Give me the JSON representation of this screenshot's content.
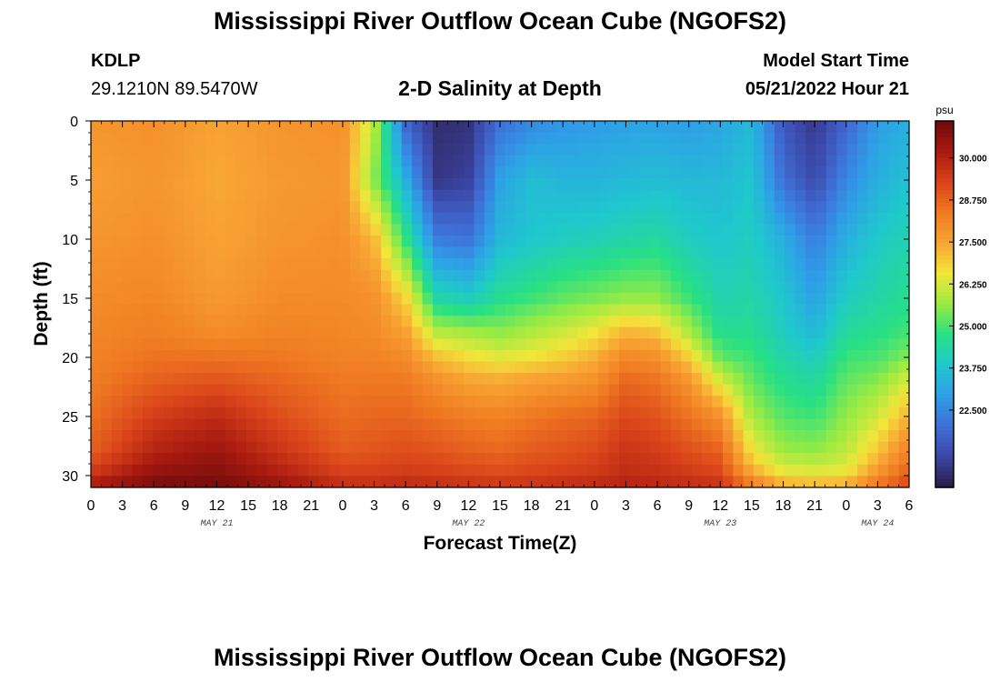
{
  "page": {
    "title": "Mississippi River Outflow Ocean Cube (NGOFS2)",
    "station": "KDLP",
    "coords": "29.1210N  89.5470W",
    "subtitle": "2-D Salinity at Depth",
    "model_label": "Model Start Time",
    "model_time": "05/21/2022 Hour 21",
    "footer_title": "Mississippi River Outflow Ocean Cube (NGOFS2)"
  },
  "chart_data": {
    "type": "heatmap",
    "title": "2-D Salinity at Depth",
    "xlabel": "Forecast Time(Z)",
    "ylabel": "Depth (ft)",
    "x_unit": "hours from 05/21/2022 00Z",
    "xlim": [
      0,
      78
    ],
    "ylim": [
      31,
      0
    ],
    "x_ticks": [
      0,
      3,
      6,
      9,
      12,
      15,
      18,
      21,
      24,
      27,
      30,
      33,
      36,
      39,
      42,
      45,
      48,
      51,
      54,
      57,
      60,
      63,
      66,
      69,
      72,
      75,
      78
    ],
    "x_tick_labels": [
      "0",
      "3",
      "6",
      "9",
      "12",
      "15",
      "18",
      "21",
      "0",
      "3",
      "6",
      "9",
      "12",
      "15",
      "18",
      "21",
      "0",
      "3",
      "6",
      "9",
      "12",
      "15",
      "18",
      "21",
      "0",
      "3",
      "6"
    ],
    "y_ticks": [
      0,
      5,
      10,
      15,
      20,
      25,
      30
    ],
    "y_tick_labels": [
      "0",
      "5",
      "10",
      "15",
      "20",
      "25",
      "30"
    ],
    "date_labels": [
      {
        "x": 12,
        "label": "MAY 21"
      },
      {
        "x": 36,
        "label": "MAY 22"
      },
      {
        "x": 60,
        "label": "MAY 23"
      },
      {
        "x": 75,
        "label": "MAY 24"
      }
    ],
    "colorbar": {
      "unit": "psu",
      "min": 20.2,
      "max": 31.1,
      "ticks": [
        22.5,
        23.75,
        25.0,
        26.25,
        27.5,
        28.75,
        30.0
      ],
      "tick_labels": [
        "22.500",
        "23.750",
        "25.000",
        "26.250",
        "27.500",
        "28.750",
        "30.000"
      ],
      "colormap": [
        "#2a1b44",
        "#3b46a6",
        "#3f6fd6",
        "#2f9ee8",
        "#1fc8cd",
        "#28e083",
        "#9aeb42",
        "#f2e63a",
        "#f8a434",
        "#f07a22",
        "#d9421a",
        "#a81a10",
        "#6e0b0b"
      ]
    },
    "field": {
      "times": [
        0,
        6,
        12,
        18,
        24,
        27,
        30,
        33,
        36,
        39,
        42,
        45,
        48,
        51,
        54,
        57,
        60,
        63,
        66,
        69,
        72,
        75,
        78
      ],
      "depths": [
        0,
        5,
        10,
        15,
        18,
        20,
        22,
        25,
        28,
        30,
        31
      ],
      "values": [
        [
          27.8,
          27.6,
          27.8,
          28.0,
          28.1,
          28.2,
          28.3,
          28.5,
          28.8,
          29.6,
          30.3
        ],
        [
          27.9,
          27.8,
          27.9,
          28.1,
          28.3,
          28.5,
          28.8,
          29.4,
          30.0,
          30.6,
          31.0
        ],
        [
          27.5,
          27.4,
          27.5,
          27.7,
          28.0,
          28.5,
          29.0,
          29.8,
          30.4,
          30.8,
          31.0
        ],
        [
          27.8,
          27.7,
          27.8,
          28.0,
          28.2,
          28.4,
          28.7,
          29.1,
          29.6,
          30.1,
          30.5
        ],
        [
          27.9,
          27.8,
          27.9,
          28.0,
          28.1,
          28.2,
          28.4,
          28.6,
          28.9,
          29.4,
          29.8
        ],
        [
          26.0,
          25.5,
          27.2,
          27.9,
          28.0,
          28.2,
          28.4,
          28.7,
          29.0,
          29.4,
          29.8
        ],
        [
          21.8,
          23.3,
          24.8,
          26.8,
          27.6,
          28.0,
          28.4,
          28.7,
          29.1,
          29.5,
          29.9
        ],
        [
          20.6,
          20.8,
          22.3,
          24.3,
          26.0,
          27.1,
          27.9,
          28.5,
          29.0,
          29.4,
          29.8
        ],
        [
          20.7,
          21.0,
          22.1,
          24.0,
          25.8,
          26.7,
          27.5,
          28.3,
          28.8,
          29.3,
          29.7
        ],
        [
          22.0,
          23.0,
          23.5,
          24.6,
          25.6,
          26.4,
          27.4,
          28.2,
          28.7,
          29.2,
          29.6
        ],
        [
          22.5,
          23.6,
          23.8,
          24.9,
          25.9,
          26.6,
          27.6,
          28.4,
          28.9,
          29.3,
          29.7
        ],
        [
          22.8,
          23.4,
          24.0,
          25.2,
          26.2,
          26.9,
          27.7,
          28.6,
          29.0,
          29.4,
          29.8
        ],
        [
          22.9,
          23.4,
          24.1,
          25.4,
          26.6,
          27.3,
          27.9,
          28.7,
          29.2,
          29.5,
          29.9
        ],
        [
          23.0,
          23.5,
          24.3,
          25.6,
          27.3,
          28.1,
          28.7,
          29.2,
          29.6,
          29.8,
          30.0
        ],
        [
          23.0,
          23.6,
          24.4,
          25.6,
          27.1,
          27.9,
          28.5,
          29.0,
          29.4,
          29.7,
          29.9
        ],
        [
          22.9,
          23.5,
          24.0,
          24.9,
          25.9,
          26.9,
          27.8,
          28.5,
          29.1,
          29.5,
          29.8
        ],
        [
          23.1,
          23.5,
          23.8,
          24.2,
          24.6,
          25.2,
          26.3,
          27.9,
          28.8,
          29.3,
          29.7
        ],
        [
          23.5,
          23.8,
          24.0,
          24.3,
          24.6,
          24.9,
          25.2,
          25.8,
          26.6,
          27.6,
          28.6
        ],
        [
          21.5,
          22.0,
          23.3,
          23.8,
          24.0,
          24.3,
          24.6,
          25.1,
          25.7,
          26.6,
          27.6
        ],
        [
          20.8,
          21.2,
          22.3,
          23.0,
          23.5,
          24.0,
          24.4,
          24.9,
          25.6,
          26.5,
          27.5
        ],
        [
          21.8,
          22.5,
          23.3,
          24.0,
          24.5,
          24.9,
          25.2,
          25.6,
          26.0,
          26.6,
          27.6
        ],
        [
          22.9,
          23.3,
          23.9,
          24.3,
          24.7,
          25.0,
          25.5,
          26.2,
          27.0,
          27.9,
          28.6
        ],
        [
          23.3,
          23.7,
          24.2,
          24.6,
          25.0,
          25.5,
          26.3,
          27.3,
          28.3,
          28.9,
          29.3
        ]
      ]
    }
  }
}
